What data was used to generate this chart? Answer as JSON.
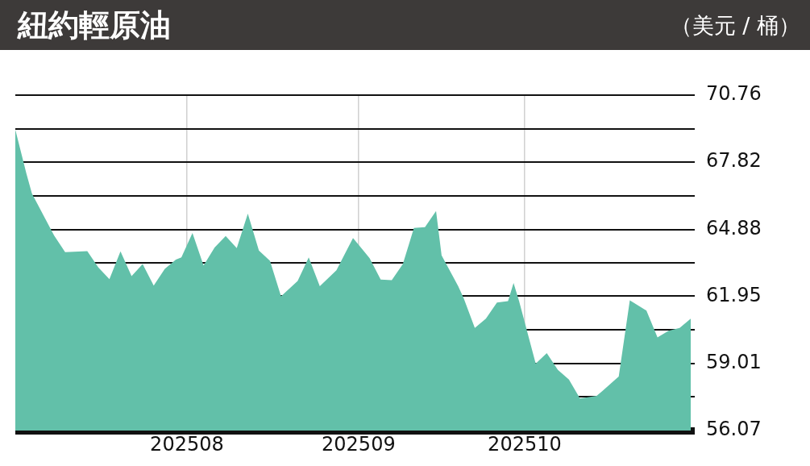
{
  "chart_data": {
    "type": "area",
    "title": "紐約輕原油",
    "subtitle": "（美元 / 桶）",
    "x": [
      "2025-07-01",
      "2025-07-03",
      "2025-07-04",
      "2025-07-08",
      "2025-07-10",
      "2025-07-14",
      "2025-07-16",
      "2025-07-18",
      "2025-07-20",
      "2025-07-22",
      "2025-07-24",
      "2025-07-26",
      "2025-07-28",
      "2025-07-30",
      "2025-07-31",
      "2025-08-02",
      "2025-08-04",
      "2025-08-06",
      "2025-08-08",
      "2025-08-10",
      "2025-08-12",
      "2025-08-14",
      "2025-08-16",
      "2025-08-18",
      "2025-08-21",
      "2025-08-23",
      "2025-08-25",
      "2025-08-28",
      "2025-08-31",
      "2025-09-01",
      "2025-09-03",
      "2025-09-05",
      "2025-09-07",
      "2025-09-09",
      "2025-09-11",
      "2025-09-13",
      "2025-09-15",
      "2025-09-16",
      "2025-09-19",
      "2025-09-20",
      "2025-09-22",
      "2025-09-24",
      "2025-09-26",
      "2025-09-28",
      "2025-09-29",
      "2025-09-30",
      "2025-10-03",
      "2025-10-05",
      "2025-10-07",
      "2025-10-09",
      "2025-10-11",
      "2025-10-14",
      "2025-10-15",
      "2025-10-18",
      "2025-10-20",
      "2025-10-23",
      "2025-10-25",
      "2025-10-27",
      "2025-10-29",
      "2025-10-31"
    ],
    "series": [
      {
        "color": "#62c0a9",
        "values": [
          69.25,
          67.33,
          66.45,
          64.62,
          63.88,
          63.93,
          63.21,
          62.7,
          63.92,
          62.83,
          63.36,
          62.42,
          63.15,
          63.56,
          63.65,
          64.72,
          63.3,
          64.09,
          64.59,
          64.06,
          65.57,
          63.95,
          63.5,
          61.95,
          62.62,
          63.65,
          62.39,
          63.09,
          64.5,
          64.21,
          63.62,
          62.68,
          62.66,
          63.36,
          64.94,
          64.98,
          65.68,
          63.74,
          62.39,
          61.86,
          60.56,
          60.97,
          61.68,
          61.74,
          62.53,
          61.74,
          59.0,
          59.46,
          58.73,
          58.3,
          57.47,
          57.59,
          57.79,
          58.44,
          61.77,
          61.32,
          60.15,
          60.44,
          60.56,
          60.97
        ]
      }
    ],
    "xlim": [
      "2025-07-01",
      "2025-10-31"
    ],
    "xticks": [
      {
        "value": "2025-08-01",
        "label": "202508"
      },
      {
        "value": "2025-09-01",
        "label": "202509"
      },
      {
        "value": "2025-10-01",
        "label": "202510"
      }
    ],
    "ylim": [
      56.07,
      70.76
    ],
    "yticks": [
      56.07,
      {
        "value": 57.54,
        "label": null
      },
      59.01,
      {
        "value": 60.48,
        "label": null
      },
      61.95,
      {
        "value": 63.415,
        "label": null
      },
      64.88,
      {
        "value": 66.35,
        "label": null
      },
      67.82,
      {
        "value": 69.29,
        "label": null
      },
      70.76
    ],
    "grid": true,
    "legend": false,
    "marker": "none"
  }
}
